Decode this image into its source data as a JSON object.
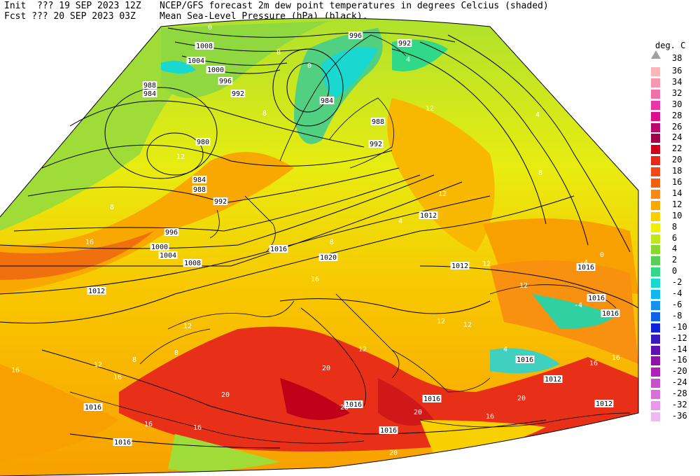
{
  "header": {
    "init": "Init  ??? 19 SEP 2023 12Z",
    "fcst": "Fcst ??? 20 SEP 2023 03Z",
    "title": "NCEP/GFS forecast 2m dew point temperatures in degrees Celcius (shaded)",
    "subtitle": "Mean Sea-Level Pressure (hPa) (black)."
  },
  "legend": {
    "title": "deg. C",
    "top_label": "38",
    "top_color": "#a0a0a0",
    "items": [
      {
        "label": "36",
        "color": "#f8b8b8"
      },
      {
        "label": "34",
        "color": "#f898b0"
      },
      {
        "label": "32",
        "color": "#f070a8"
      },
      {
        "label": "30",
        "color": "#e838a8"
      },
      {
        "label": "28",
        "color": "#d8108c"
      },
      {
        "label": "26",
        "color": "#b80870"
      },
      {
        "label": "24",
        "color": "#a00048"
      },
      {
        "label": "22",
        "color": "#d00018"
      },
      {
        "label": "20",
        "color": "#e82818"
      },
      {
        "label": "18",
        "color": "#f04818"
      },
      {
        "label": "16",
        "color": "#f06010"
      },
      {
        "label": "14",
        "color": "#f88818"
      },
      {
        "label": "12",
        "color": "#f8a800"
      },
      {
        "label": "10",
        "color": "#f8d000"
      },
      {
        "label": "8",
        "color": "#f0f000"
      },
      {
        "label": "6",
        "color": "#c0e818"
      },
      {
        "label": "4",
        "color": "#88d830"
      },
      {
        "label": "2",
        "color": "#58d058"
      },
      {
        "label": "0",
        "color": "#30d888"
      },
      {
        "label": "-2",
        "color": "#18d8d0"
      },
      {
        "label": "-4",
        "color": "#10b8f0"
      },
      {
        "label": "-6",
        "color": "#1890f0"
      },
      {
        "label": "-8",
        "color": "#1060e8"
      },
      {
        "label": "-10",
        "color": "#1020e0"
      },
      {
        "label": "-12",
        "color": "#3818c0"
      },
      {
        "label": "-14",
        "color": "#6010b0"
      },
      {
        "label": "-16",
        "color": "#9010a8"
      },
      {
        "label": "-20",
        "color": "#b020b8"
      },
      {
        "label": "-24",
        "color": "#c850c8"
      },
      {
        "label": "-28",
        "color": "#d870d8"
      },
      {
        "label": "-32",
        "color": "#e898e8"
      },
      {
        "label": "-36",
        "color": "#f0b8f0"
      }
    ]
  },
  "isobar_labels": [
    "1008",
    "1004",
    "1000",
    "996",
    "992",
    "988",
    "984",
    "980",
    "984",
    "988",
    "992",
    "996",
    "1000",
    "1004",
    "1008",
    "1012",
    "1016",
    "1020",
    "1016",
    "1012",
    "992",
    "988",
    "984",
    "992",
    "996",
    "1012",
    "1016",
    "1016",
    "1016",
    "1016",
    "1016",
    "1016",
    "1016",
    "1012",
    "1012",
    "1016"
  ],
  "dewpoint_labels": [
    "0",
    "8",
    "8",
    "12",
    "16",
    "16",
    "12",
    "12",
    "8",
    "16",
    "20",
    "20",
    "20",
    "4",
    "4",
    "12",
    "12",
    "12",
    "4",
    "16",
    "16",
    "-4",
    "0",
    "-4",
    "12",
    "12",
    "8",
    "8",
    "8",
    "8",
    "16",
    "16",
    "20",
    "16",
    "4",
    "4",
    "20",
    "20",
    "12",
    "12",
    "16",
    "0"
  ]
}
